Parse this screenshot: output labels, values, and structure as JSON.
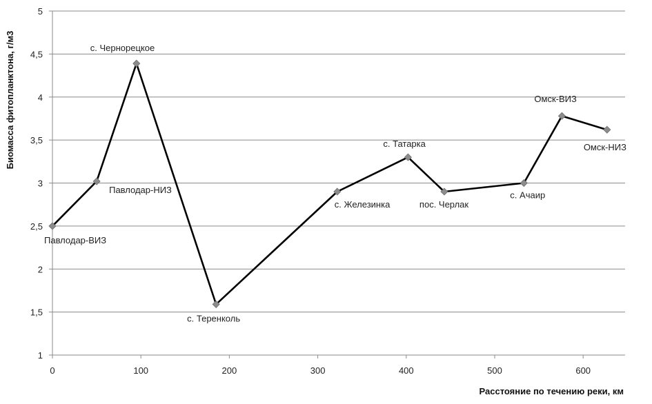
{
  "chart_data": {
    "type": "line",
    "title": "",
    "xlabel": "Расстояние по течению реки, км",
    "ylabel": "Биомасса фитопланктона, г/м3",
    "xlim": [
      0,
      650
    ],
    "ylim": [
      1,
      5
    ],
    "x_ticks": [
      0,
      100,
      200,
      300,
      400,
      500,
      600
    ],
    "y_ticks": [
      1,
      1.5,
      2,
      2.5,
      3,
      3.5,
      4,
      4.5,
      5
    ],
    "x_tick_labels": [
      "0",
      "100",
      "200",
      "300",
      "400",
      "500",
      "600"
    ],
    "y_tick_labels": [
      "1",
      "1,5",
      "2",
      "2,5",
      "3",
      "3,5",
      "4",
      "4,5",
      "5"
    ],
    "grid": "horizontal",
    "legend": "none",
    "line_color": "#000000",
    "marker_color": "#8c8c8c",
    "series": [
      {
        "points": [
          {
            "x": 0,
            "y": 2.5,
            "label": "Павлодар-ВИЗ"
          },
          {
            "x": 50,
            "y": 3.02,
            "label": "Павлодар-НИЗ"
          },
          {
            "x": 95,
            "y": 4.39,
            "label": "с. Чернорецкое"
          },
          {
            "x": 185,
            "y": 1.59,
            "label": "с. Теренколь"
          },
          {
            "x": 322,
            "y": 2.9,
            "label": "с. Железинка"
          },
          {
            "x": 402,
            "y": 3.3,
            "label": "с. Татарка"
          },
          {
            "x": 443,
            "y": 2.9,
            "label": "пос. Черлак"
          },
          {
            "x": 533,
            "y": 3.0,
            "label": "с. Ачаир"
          },
          {
            "x": 576,
            "y": 3.78,
            "label": "Омск-ВИЗ"
          },
          {
            "x": 627,
            "y": 3.62,
            "label": "Омск-НИЗ"
          }
        ]
      }
    ]
  }
}
